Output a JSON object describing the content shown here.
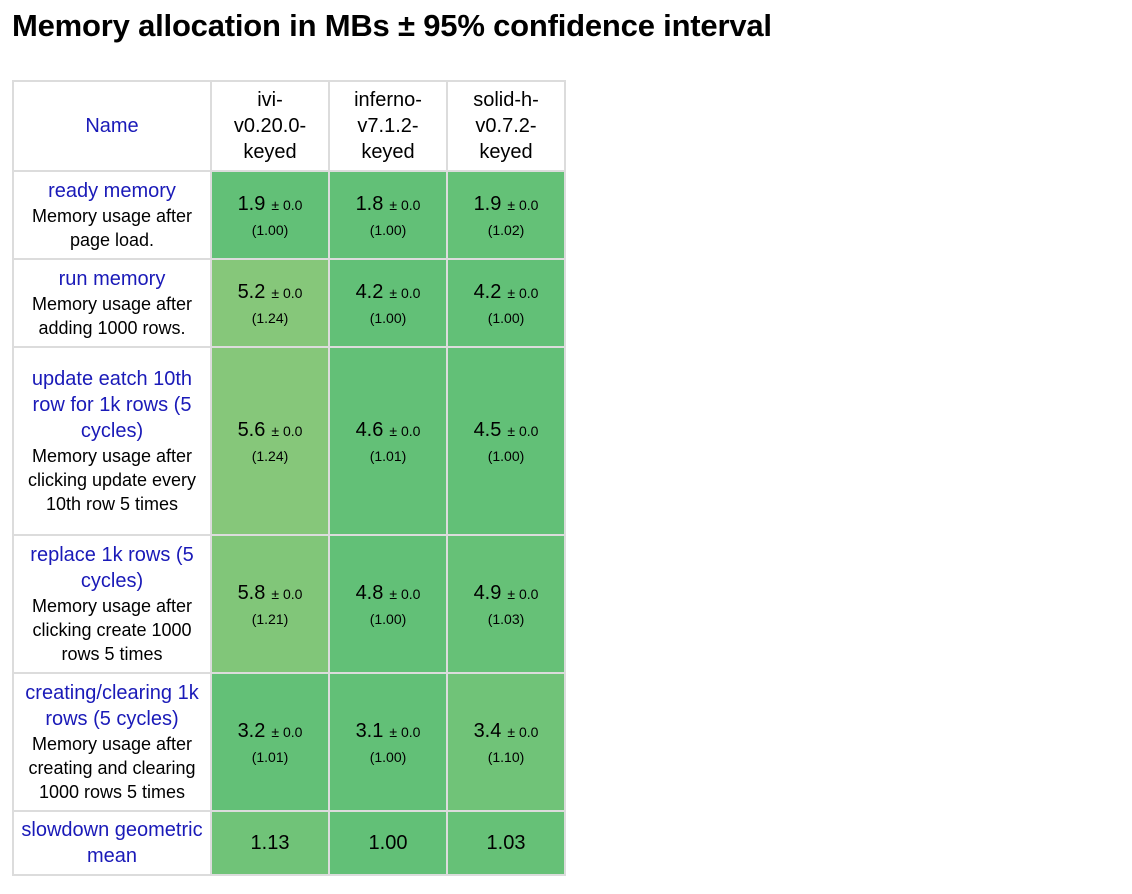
{
  "title": "Memory allocation in MBs ± 95% confidence interval",
  "header": {
    "name": "Name",
    "frameworks": [
      [
        "ivi-",
        "v0.20.0-",
        "keyed"
      ],
      [
        "inferno-",
        "v7.1.2-",
        "keyed"
      ],
      [
        "solid-h-",
        "v0.7.2-",
        "keyed"
      ]
    ]
  },
  "rows": [
    {
      "title": "ready memory",
      "desc": "Memory usage after page load.",
      "cells": [
        {
          "value": "1.9",
          "ci": "± 0.0",
          "ratio": "(1.00)",
          "color": "#62c077"
        },
        {
          "value": "1.8",
          "ci": "± 0.0",
          "ratio": "(1.00)",
          "color": "#62c077"
        },
        {
          "value": "1.9",
          "ci": "± 0.0",
          "ratio": "(1.02)",
          "color": "#64c177"
        }
      ]
    },
    {
      "title": "run memory",
      "desc": "Memory usage after adding 1000 rows.",
      "cells": [
        {
          "value": "5.2",
          "ci": "± 0.0",
          "ratio": "(1.24)",
          "color": "#86c77a"
        },
        {
          "value": "4.2",
          "ci": "± 0.0",
          "ratio": "(1.00)",
          "color": "#62c077"
        },
        {
          "value": "4.2",
          "ci": "± 0.0",
          "ratio": "(1.00)",
          "color": "#62c077"
        }
      ]
    },
    {
      "title": "update eatch 10th row for 1k rows (5 cycles)",
      "desc": "Memory usage after clicking update every 10th row 5 times",
      "cells": [
        {
          "value": "5.6",
          "ci": "± 0.0",
          "ratio": "(1.24)",
          "color": "#86c77a"
        },
        {
          "value": "4.6",
          "ci": "± 0.0",
          "ratio": "(1.01)",
          "color": "#63c077"
        },
        {
          "value": "4.5",
          "ci": "± 0.0",
          "ratio": "(1.00)",
          "color": "#62c077"
        }
      ]
    },
    {
      "title": "replace 1k rows (5 cycles)",
      "desc": "Memory usage after clicking create 1000 rows 5 times",
      "cells": [
        {
          "value": "5.8",
          "ci": "± 0.0",
          "ratio": "(1.21)",
          "color": "#81c679"
        },
        {
          "value": "4.8",
          "ci": "± 0.0",
          "ratio": "(1.00)",
          "color": "#62c077"
        },
        {
          "value": "4.9",
          "ci": "± 0.0",
          "ratio": "(1.03)",
          "color": "#66c177"
        }
      ]
    },
    {
      "title": "creating/clearing 1k rows (5 cycles)",
      "desc": "Memory usage after creating and clearing 1000 rows 5 times",
      "cells": [
        {
          "value": "3.2",
          "ci": "± 0.0",
          "ratio": "(1.01)",
          "color": "#63c077"
        },
        {
          "value": "3.1",
          "ci": "± 0.0",
          "ratio": "(1.00)",
          "color": "#62c077"
        },
        {
          "value": "3.4",
          "ci": "± 0.0",
          "ratio": "(1.10)",
          "color": "#70c378"
        }
      ]
    }
  ],
  "slowdown": {
    "title": "slowdown geometric mean",
    "cells": [
      {
        "value": "1.13",
        "color": "#70c378"
      },
      {
        "value": "1.00",
        "color": "#62c077"
      },
      {
        "value": "1.03",
        "color": "#66c177"
      }
    ]
  }
}
